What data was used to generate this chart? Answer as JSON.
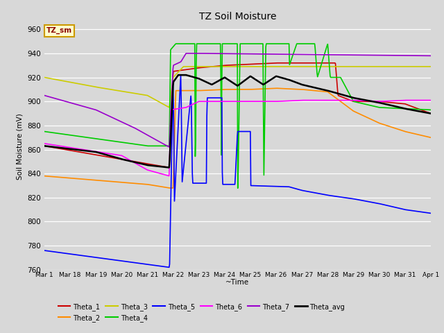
{
  "title": "TZ Soil Moisture",
  "ylabel": "Soil Moisture (mV)",
  "xlabel": "~Time",
  "legend_label": "TZ_sm",
  "ylim": [
    760,
    965
  ],
  "yticks": [
    760,
    780,
    800,
    820,
    840,
    860,
    880,
    900,
    920,
    940,
    960
  ],
  "bg_color": "#d8d8d8",
  "series_colors": {
    "Theta_1": "#cc0000",
    "Theta_2": "#ff8c00",
    "Theta_3": "#cccc00",
    "Theta_4": "#00cc00",
    "Theta_5": "#0000ff",
    "Theta_6": "#ff00ff",
    "Theta_7": "#9900cc",
    "Theta_avg": "#000000"
  },
  "line_width": 1.2,
  "n_points": 800,
  "tick_labels": [
    "Mar 1",
    "Mar 18",
    "Mar 19",
    "Mar 20",
    "Mar 21",
    "Mar 22",
    "Mar 23",
    "Mar 24",
    "Mar 25",
    "Mar 26",
    "Mar 27",
    "Mar 28",
    "Mar 29",
    "Mar 30",
    "Mar 31",
    "Apr 1"
  ]
}
